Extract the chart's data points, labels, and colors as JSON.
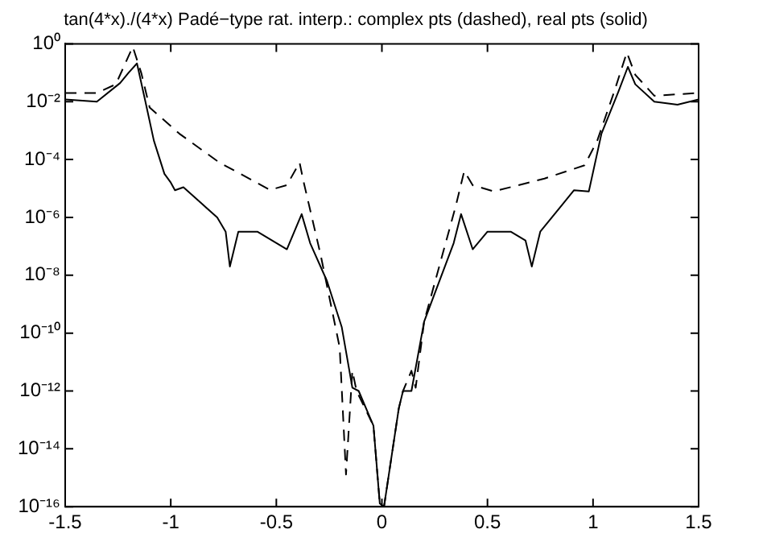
{
  "chart_data": {
    "type": "line",
    "title": "tan(4*x)./(4*x) Padé−type rat. interp.: complex pts (dashed), real pts (solid)",
    "log": "y",
    "grid": false,
    "legend": false,
    "marker": "none",
    "xlim": [
      -1.5,
      1.5
    ],
    "xticks": [
      -1.5,
      -1,
      -0.5,
      0,
      0.5,
      1,
      1.5
    ],
    "ylim": [
      1e-16,
      1
    ],
    "yticks": [
      {
        "value": 1e-16,
        "label": "10⁻¹⁶"
      },
      {
        "value": 1e-14,
        "label": "10⁻¹⁴"
      },
      {
        "value": 1e-12,
        "label": "10⁻¹²"
      },
      {
        "value": 1e-10,
        "label": "10⁻¹⁰"
      },
      {
        "value": 1e-08,
        "label": "10⁻⁸"
      },
      {
        "value": 1e-06,
        "label": "10⁻⁶"
      },
      {
        "value": 0.0001,
        "label": "10⁻⁴"
      },
      {
        "value": 0.01,
        "label": "10⁻²"
      },
      {
        "value": 1,
        "label": "10⁰"
      }
    ],
    "series": [
      {
        "color": "#000000",
        "line_style": "dashed",
        "x": [
          -1.5,
          -1.35,
          -1.26,
          -1.18,
          -1.14,
          -1.1,
          -0.96,
          -0.77,
          -0.53,
          -0.45,
          -0.39,
          -0.37,
          -0.29,
          -0.2,
          -0.17,
          -0.14,
          -0.12,
          -0.04,
          -0.01,
          0.01,
          0.08,
          0.1,
          0.14,
          0.16,
          0.2,
          0.35,
          0.39,
          0.43,
          0.53,
          0.77,
          0.96,
          1.02,
          1.1,
          1.16,
          1.2,
          1.29,
          1.5
        ],
        "values": [
          0.02,
          0.02,
          0.04,
          0.79,
          0.1,
          0.0063,
          0.00079,
          7.9e-05,
          8.9e-06,
          1.3e-05,
          7.9e-05,
          1.6e-05,
          5e-08,
          3.2e-11,
          1.3e-15,
          5e-12,
          1e-12,
          6.3e-14,
          1.3e-16,
          1e-16,
          2.5e-13,
          1e-12,
          5e-12,
          1.3e-12,
          2.5e-10,
          2.5e-06,
          4e-05,
          1.3e-05,
          7.9e-06,
          2.2e-05,
          6.3e-05,
          0.00045,
          0.022,
          0.5,
          0.085,
          0.016,
          0.02
        ]
      },
      {
        "color": "#000000",
        "line_style": "solid",
        "x": [
          -1.5,
          -1.35,
          -1.24,
          -1.2,
          -1.16,
          -1.12,
          -1.08,
          -1.03,
          -1,
          -0.98,
          -0.94,
          -0.78,
          -0.74,
          -0.72,
          -0.68,
          -0.59,
          -0.45,
          -0.38,
          -0.34,
          -0.26,
          -0.19,
          -0.14,
          -0.11,
          -0.04,
          -0.01,
          0.01,
          0.08,
          0.1,
          0.14,
          0.2,
          0.34,
          0.375,
          0.43,
          0.5,
          0.61,
          0.68,
          0.71,
          0.75,
          0.91,
          0.98,
          1.04,
          1.12,
          1.165,
          1.2,
          1.29,
          1.4,
          1.5
        ],
        "values": [
          0.012,
          0.01,
          0.044,
          0.1,
          0.21,
          0.01,
          0.00045,
          3.2e-05,
          1.6e-05,
          8.7e-06,
          1.1e-05,
          1e-06,
          3.2e-07,
          2e-08,
          3.2e-07,
          3.2e-07,
          7.9e-08,
          1.3e-06,
          1.3e-07,
          6.3e-09,
          1.6e-10,
          1.3e-12,
          1e-12,
          6.3e-14,
          1.3e-16,
          1e-16,
          2.5e-13,
          1e-12,
          1e-12,
          2.5e-10,
          1.3e-07,
          1.3e-06,
          7.9e-08,
          3.2e-07,
          3.2e-07,
          1.6e-07,
          2e-08,
          3.2e-07,
          8.7e-06,
          7.9e-06,
          0.00079,
          0.022,
          0.16,
          0.04,
          0.01,
          0.0079,
          0.012
        ]
      }
    ]
  }
}
